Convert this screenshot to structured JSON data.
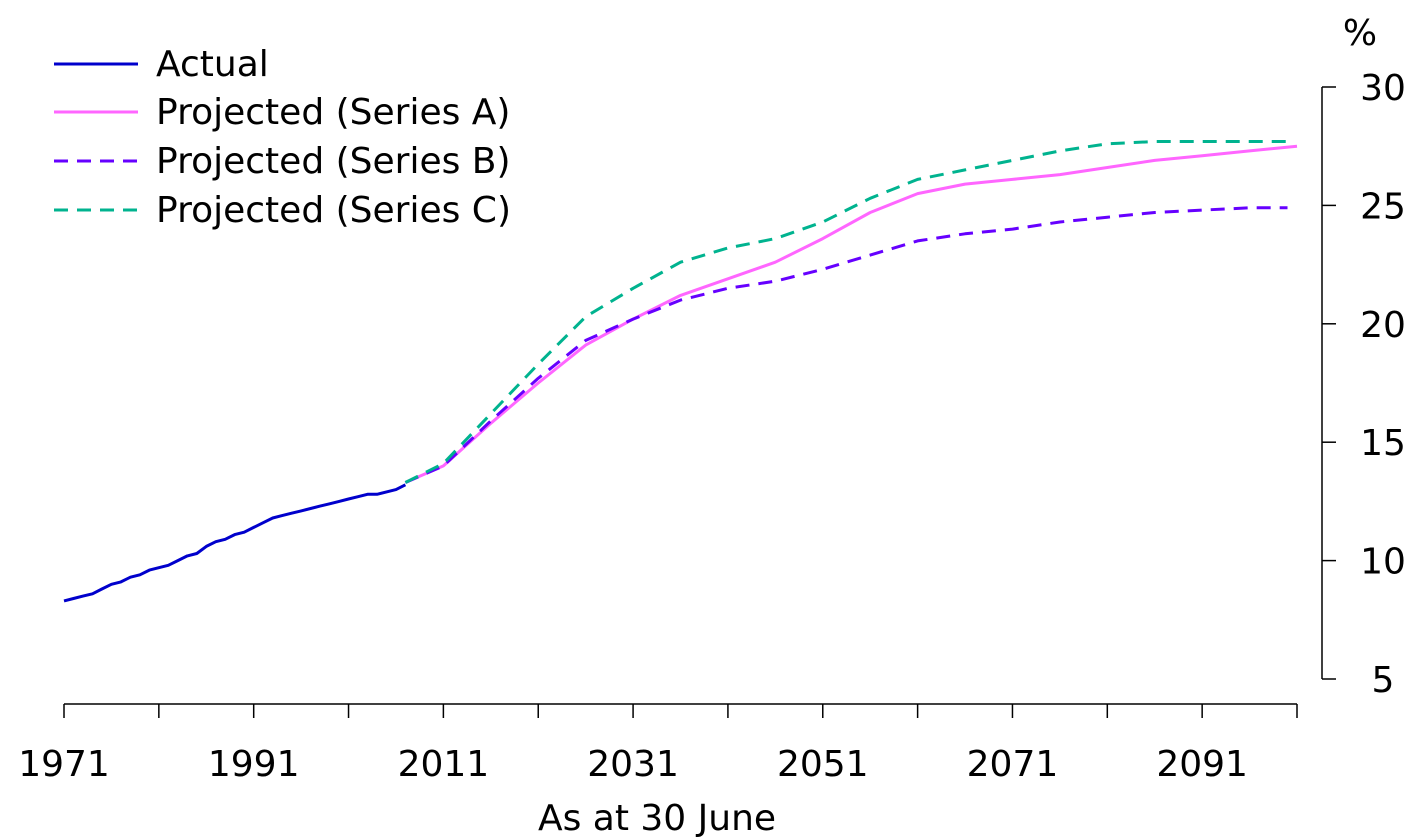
{
  "chart_data": {
    "type": "line",
    "title": "",
    "xlabel": "As at 30 June",
    "ylabel": "%",
    "xlim": [
      1971,
      2101
    ],
    "ylim": [
      5,
      30
    ],
    "x_ticks": [
      1971,
      1991,
      2011,
      2031,
      2051,
      2071,
      2091
    ],
    "y_ticks": [
      5,
      10,
      15,
      20,
      25,
      30
    ],
    "y_axis_position": "right",
    "grid": false,
    "legend_position": "top-left",
    "series": [
      {
        "name": "Actual",
        "color": "#0000cc",
        "dash": "solid",
        "x": [
          1971,
          1972,
          1973,
          1974,
          1975,
          1976,
          1977,
          1978,
          1979,
          1980,
          1981,
          1982,
          1983,
          1984,
          1985,
          1986,
          1987,
          1988,
          1989,
          1990,
          1991,
          1992,
          1993,
          1994,
          1995,
          1996,
          1997,
          1998,
          1999,
          2000,
          2001,
          2002,
          2003,
          2004,
          2005,
          2006,
          2007
        ],
        "values": [
          8.3,
          8.4,
          8.5,
          8.6,
          8.8,
          9.0,
          9.1,
          9.3,
          9.4,
          9.6,
          9.7,
          9.8,
          10.0,
          10.2,
          10.3,
          10.6,
          10.8,
          10.9,
          11.1,
          11.2,
          11.4,
          11.6,
          11.8,
          11.9,
          12.0,
          12.1,
          12.2,
          12.3,
          12.4,
          12.5,
          12.6,
          12.7,
          12.8,
          12.8,
          12.9,
          13.0,
          13.2
        ]
      },
      {
        "name": "Projected (Series A)",
        "color": "#ff66ff",
        "dash": "solid",
        "x": [
          2007,
          2011,
          2016,
          2021,
          2026,
          2031,
          2036,
          2041,
          2046,
          2051,
          2056,
          2061,
          2066,
          2071,
          2076,
          2081,
          2086,
          2091,
          2096,
          2101
        ],
        "values": [
          13.3,
          14.0,
          15.8,
          17.5,
          19.1,
          20.2,
          21.2,
          21.9,
          22.6,
          23.6,
          24.7,
          25.5,
          25.9,
          26.1,
          26.3,
          26.6,
          26.9,
          27.1,
          27.3,
          27.5
        ]
      },
      {
        "name": "Projected (Series B)",
        "color": "#6600ff",
        "dash": "dashed",
        "x": [
          2007,
          2011,
          2016,
          2021,
          2026,
          2031,
          2036,
          2041,
          2046,
          2051,
          2056,
          2061,
          2066,
          2071,
          2076,
          2081,
          2086,
          2091,
          2096,
          2100
        ],
        "values": [
          13.3,
          14.0,
          15.9,
          17.7,
          19.3,
          20.2,
          21.0,
          21.5,
          21.8,
          22.3,
          22.9,
          23.5,
          23.8,
          24.0,
          24.3,
          24.5,
          24.7,
          24.8,
          24.9,
          24.9
        ]
      },
      {
        "name": "Projected (Series C)",
        "color": "#00b38f",
        "dash": "dashed",
        "x": [
          2007,
          2011,
          2016,
          2021,
          2026,
          2031,
          2036,
          2041,
          2046,
          2051,
          2056,
          2061,
          2066,
          2071,
          2076,
          2081,
          2086,
          2091,
          2096,
          2100
        ],
        "values": [
          13.3,
          14.1,
          16.2,
          18.3,
          20.3,
          21.5,
          22.6,
          23.2,
          23.6,
          24.3,
          25.3,
          26.1,
          26.5,
          26.9,
          27.3,
          27.6,
          27.7,
          27.7,
          27.7,
          27.7
        ]
      }
    ]
  }
}
